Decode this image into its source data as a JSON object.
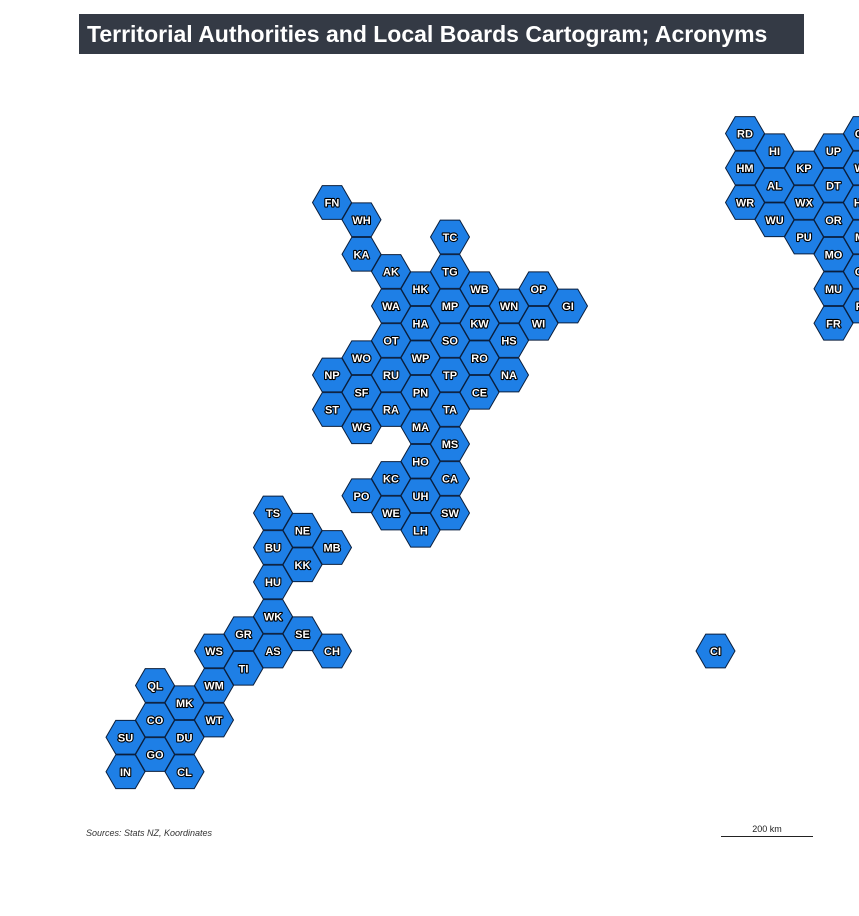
{
  "title": "Territorial Authorities and Local Boards Cartogram; Acronyms",
  "source": "Sources: Stats NZ, Koordinates",
  "scale": {
    "label": "200 km"
  },
  "colors": {
    "fill": "#1e7fe6",
    "stroke": "#0a1e3c"
  },
  "hexes": [
    {
      "code": "RD",
      "col": 21,
      "row": 0
    },
    {
      "code": "GB",
      "col": 25,
      "row": 0
    },
    {
      "code": "HI",
      "col": 22,
      "row": 1
    },
    {
      "code": "UP",
      "col": 24,
      "row": 1
    },
    {
      "code": "HM",
      "col": 21,
      "row": 2
    },
    {
      "code": "KP",
      "col": 23,
      "row": 2
    },
    {
      "code": "WL",
      "col": 25,
      "row": 2
    },
    {
      "code": "AL",
      "col": 22,
      "row": 3
    },
    {
      "code": "DT",
      "col": 24,
      "row": 3
    },
    {
      "code": "WR",
      "col": 21,
      "row": 4
    },
    {
      "code": "WX",
      "col": 23,
      "row": 4
    },
    {
      "code": "HW",
      "col": 25,
      "row": 4
    },
    {
      "code": "WU",
      "col": 22,
      "row": 5
    },
    {
      "code": "OR",
      "col": 24,
      "row": 5
    },
    {
      "code": "PU",
      "col": 23,
      "row": 6
    },
    {
      "code": "MT",
      "col": 25,
      "row": 6
    },
    {
      "code": "MO",
      "col": 24,
      "row": 7
    },
    {
      "code": "OA",
      "col": 25,
      "row": 8
    },
    {
      "code": "MU",
      "col": 24,
      "row": 9
    },
    {
      "code": "PP",
      "col": 25,
      "row": 10
    },
    {
      "code": "FR",
      "col": 24,
      "row": 11
    },
    {
      "code": "FN",
      "col": 7,
      "row": 4
    },
    {
      "code": "WH",
      "col": 8,
      "row": 5
    },
    {
      "code": "TC",
      "col": 11,
      "row": 6
    },
    {
      "code": "KA",
      "col": 8,
      "row": 7
    },
    {
      "code": "AK",
      "col": 9,
      "row": 8
    },
    {
      "code": "TG",
      "col": 11,
      "row": 8
    },
    {
      "code": "HK",
      "col": 10,
      "row": 9
    },
    {
      "code": "WB",
      "col": 12,
      "row": 9
    },
    {
      "code": "OP",
      "col": 14,
      "row": 9
    },
    {
      "code": "WA",
      "col": 9,
      "row": 10
    },
    {
      "code": "MP",
      "col": 11,
      "row": 10
    },
    {
      "code": "WN",
      "col": 13,
      "row": 10
    },
    {
      "code": "GI",
      "col": 15,
      "row": 10
    },
    {
      "code": "HA",
      "col": 10,
      "row": 11
    },
    {
      "code": "KW",
      "col": 12,
      "row": 11
    },
    {
      "code": "WI",
      "col": 14,
      "row": 11
    },
    {
      "code": "OT",
      "col": 9,
      "row": 12
    },
    {
      "code": "SO",
      "col": 11,
      "row": 12
    },
    {
      "code": "HS",
      "col": 13,
      "row": 12
    },
    {
      "code": "WO",
      "col": 8,
      "row": 13
    },
    {
      "code": "WP",
      "col": 10,
      "row": 13
    },
    {
      "code": "RO",
      "col": 12,
      "row": 13
    },
    {
      "code": "NP",
      "col": 7,
      "row": 14
    },
    {
      "code": "RU",
      "col": 9,
      "row": 14
    },
    {
      "code": "TP",
      "col": 11,
      "row": 14
    },
    {
      "code": "NA",
      "col": 13,
      "row": 14
    },
    {
      "code": "SF",
      "col": 8,
      "row": 15
    },
    {
      "code": "PN",
      "col": 10,
      "row": 15
    },
    {
      "code": "CE",
      "col": 12,
      "row": 15
    },
    {
      "code": "ST",
      "col": 7,
      "row": 16
    },
    {
      "code": "RA",
      "col": 9,
      "row": 16
    },
    {
      "code": "TA",
      "col": 11,
      "row": 16
    },
    {
      "code": "WG",
      "col": 8,
      "row": 17
    },
    {
      "code": "MA",
      "col": 10,
      "row": 17
    },
    {
      "code": "MS",
      "col": 11,
      "row": 18
    },
    {
      "code": "HO",
      "col": 10,
      "row": 19
    },
    {
      "code": "KC",
      "col": 9,
      "row": 20
    },
    {
      "code": "CA",
      "col": 11,
      "row": 20
    },
    {
      "code": "PO",
      "col": 8,
      "row": 21
    },
    {
      "code": "UH",
      "col": 10,
      "row": 21
    },
    {
      "code": "WE",
      "col": 9,
      "row": 22
    },
    {
      "code": "SW",
      "col": 11,
      "row": 22
    },
    {
      "code": "LH",
      "col": 10,
      "row": 23
    },
    {
      "code": "TS",
      "col": 5,
      "row": 22
    },
    {
      "code": "NE",
      "col": 6,
      "row": 23
    },
    {
      "code": "BU",
      "col": 5,
      "row": 24
    },
    {
      "code": "MB",
      "col": 7,
      "row": 24
    },
    {
      "code": "KK",
      "col": 6,
      "row": 25
    },
    {
      "code": "HU",
      "col": 5,
      "row": 26
    },
    {
      "code": "WK",
      "col": 5,
      "row": 28
    },
    {
      "code": "GR",
      "col": 4,
      "row": 29
    },
    {
      "code": "SE",
      "col": 6,
      "row": 29
    },
    {
      "code": "WS",
      "col": 3,
      "row": 30
    },
    {
      "code": "AS",
      "col": 5,
      "row": 30
    },
    {
      "code": "CH",
      "col": 7,
      "row": 30
    },
    {
      "code": "CI",
      "col": 20,
      "row": 30
    },
    {
      "code": "TI",
      "col": 4,
      "row": 31
    },
    {
      "code": "QL",
      "col": 1,
      "row": 32
    },
    {
      "code": "WM",
      "col": 3,
      "row": 32
    },
    {
      "code": "MK",
      "col": 2,
      "row": 33
    },
    {
      "code": "CO",
      "col": 1,
      "row": 34
    },
    {
      "code": "WT",
      "col": 3,
      "row": 34
    },
    {
      "code": "SU",
      "col": 0,
      "row": 35
    },
    {
      "code": "DU",
      "col": 2,
      "row": 35
    },
    {
      "code": "GO",
      "col": 1,
      "row": 36
    },
    {
      "code": "IN",
      "col": 0,
      "row": 37
    },
    {
      "code": "CL",
      "col": 2,
      "row": 37
    }
  ]
}
